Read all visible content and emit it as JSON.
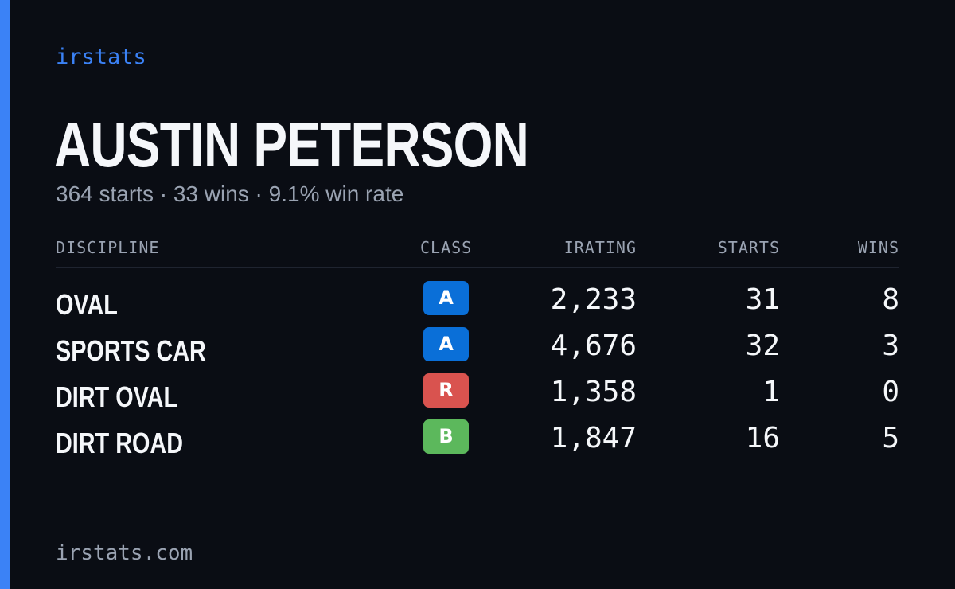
{
  "brand": "irstats",
  "driver": {
    "name": "AUSTIN PETERSON",
    "summary": "364 starts · 33 wins · 9.1% win rate"
  },
  "table": {
    "headers": {
      "discipline": "DISCIPLINE",
      "class": "CLASS",
      "irating": "IRATING",
      "starts": "STARTS",
      "wins": "WINS"
    },
    "rows": [
      {
        "discipline": "OVAL",
        "class": "A",
        "class_color": "#0a6fd8",
        "irating": "2,233",
        "starts": "31",
        "wins": "8"
      },
      {
        "discipline": "SPORTS CAR",
        "class": "A",
        "class_color": "#0a6fd8",
        "irating": "4,676",
        "starts": "32",
        "wins": "3"
      },
      {
        "discipline": "DIRT OVAL",
        "class": "R",
        "class_color": "#d9534f",
        "irating": "1,358",
        "starts": "1",
        "wins": "0"
      },
      {
        "discipline": "DIRT ROAD",
        "class": "B",
        "class_color": "#5cb85c",
        "irating": "1,847",
        "starts": "16",
        "wins": "5"
      }
    ]
  },
  "footer": "irstats.com",
  "colors": {
    "accent": "#3b82f6",
    "background": "#0a0d14",
    "muted_text": "#9aa3b2",
    "primary_text": "#f5f7fa"
  }
}
